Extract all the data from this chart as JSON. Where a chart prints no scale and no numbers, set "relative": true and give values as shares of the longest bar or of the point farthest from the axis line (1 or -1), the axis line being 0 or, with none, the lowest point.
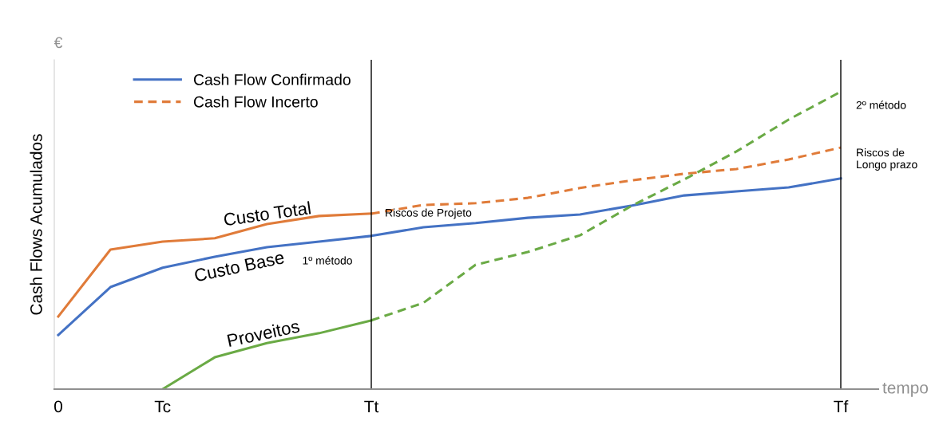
{
  "chart_data": {
    "type": "line",
    "relative": true,
    "ylabel": "Cash Flows Acumulados",
    "xlabel": "tempo",
    "categories": [
      "0",
      null,
      "Tc",
      null,
      null,
      null,
      "Tt",
      null,
      null,
      null,
      null,
      null,
      null,
      null,
      null,
      "Tf"
    ],
    "legend": "top left",
    "grid": false,
    "series": [
      {
        "color": "#e07b39",
        "line_style": "solid",
        "values": [
          0.244,
          0.469,
          0.496,
          0.507,
          0.555,
          0.582,
          0.59,
          null,
          null,
          null,
          null,
          null,
          null,
          null,
          null,
          null
        ]
      },
      {
        "name": "Cash Flow Confirmado",
        "color": "#4472c4",
        "line_style": "solid",
        "values": [
          0.182,
          0.343,
          0.408,
          0.445,
          0.477,
          0.496,
          0.515,
          0.544,
          0.558,
          0.576,
          0.587,
          0.617,
          0.651,
          0.665,
          0.678,
          0.708
        ]
      },
      {
        "name": "Cash Flow Incerto",
        "color": "#e07b39",
        "line_style": "dashed",
        "values": [
          null,
          null,
          null,
          null,
          null,
          null,
          0.59,
          0.619,
          0.625,
          0.643,
          0.676,
          0.702,
          0.724,
          0.74,
          0.772,
          0.812
        ]
      },
      {
        "color": "#6aaa45",
        "line_style": "solid",
        "values": [
          null,
          null,
          0,
          0.107,
          0.155,
          0.188,
          0.231,
          null,
          null,
          null,
          null,
          null,
          null,
          null,
          null,
          null
        ]
      },
      {
        "color": "#6aaa45",
        "line_style": "dashed",
        "values": [
          null,
          null,
          null,
          null,
          null,
          null,
          0.231,
          0.29,
          0.418,
          0.461,
          0.517,
          0.617,
          0.705,
          0.799,
          0.906,
          1.0
        ]
      }
    ],
    "ref_lines": [
      {
        "axis": "x",
        "value": "Tt",
        "color": "#000000"
      },
      {
        "axis": "x",
        "value": "Tf",
        "color": "#000000"
      }
    ],
    "annotations": [
      "€",
      "Custo Total",
      "Custo Base",
      "Proveitos",
      "Riscos de Projeto",
      "1º método",
      "2º método",
      "Riscos de\nLongo prazo"
    ]
  }
}
